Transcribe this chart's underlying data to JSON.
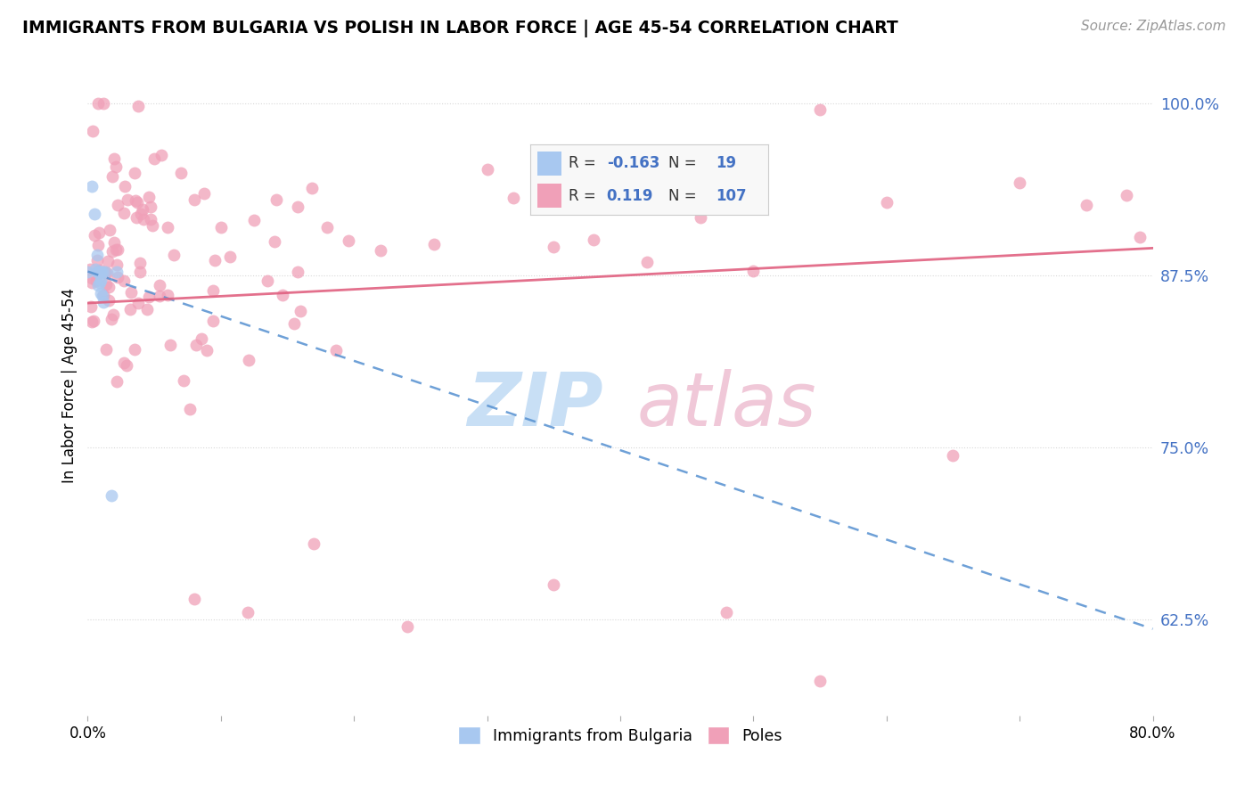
{
  "title": "IMMIGRANTS FROM BULGARIA VS POLISH IN LABOR FORCE | AGE 45-54 CORRELATION CHART",
  "source": "Source: ZipAtlas.com",
  "ylabel": "In Labor Force | Age 45-54",
  "bg_color": "#ffffff",
  "grid_color": "#d8d8d8",
  "bulgaria_fill": "#a8c8f0",
  "bulgaria_edge": "#7aaae0",
  "poles_fill": "#f0a0b8",
  "poles_edge": "#e07090",
  "bulgaria_line_color": "#5590d0",
  "poles_line_color": "#e06080",
  "legend_bg": "#f8f8f8",
  "legend_border": "#cccccc",
  "right_axis_color": "#4472c4",
  "watermark_zip_color": "#c8dff5",
  "watermark_atlas_color": "#f0c8d8",
  "xlim": [
    0.0,
    80.0
  ],
  "ylim": [
    0.555,
    1.035
  ],
  "ytick_vals": [
    0.625,
    0.75,
    0.875,
    1.0
  ],
  "ytick_labels": [
    "62.5%",
    "75.0%",
    "87.5%",
    "100.0%"
  ],
  "xtick_positions": [
    0,
    10,
    20,
    30,
    40,
    50,
    60,
    70,
    80
  ],
  "bulgaria_trend_x": [
    0.0,
    80.0
  ],
  "bulgaria_trend_y": [
    0.878,
    0.618
  ],
  "poles_trend_x": [
    0.0,
    80.0
  ],
  "poles_trend_y": [
    0.855,
    0.895
  ],
  "legend_R1": "-0.163",
  "legend_N1": "19",
  "legend_R2": "0.119",
  "legend_N2": "107",
  "legend_label1": "Immigrants from Bulgaria",
  "legend_label2": "Poles",
  "source_text": "Source: ZipAtlas.com"
}
